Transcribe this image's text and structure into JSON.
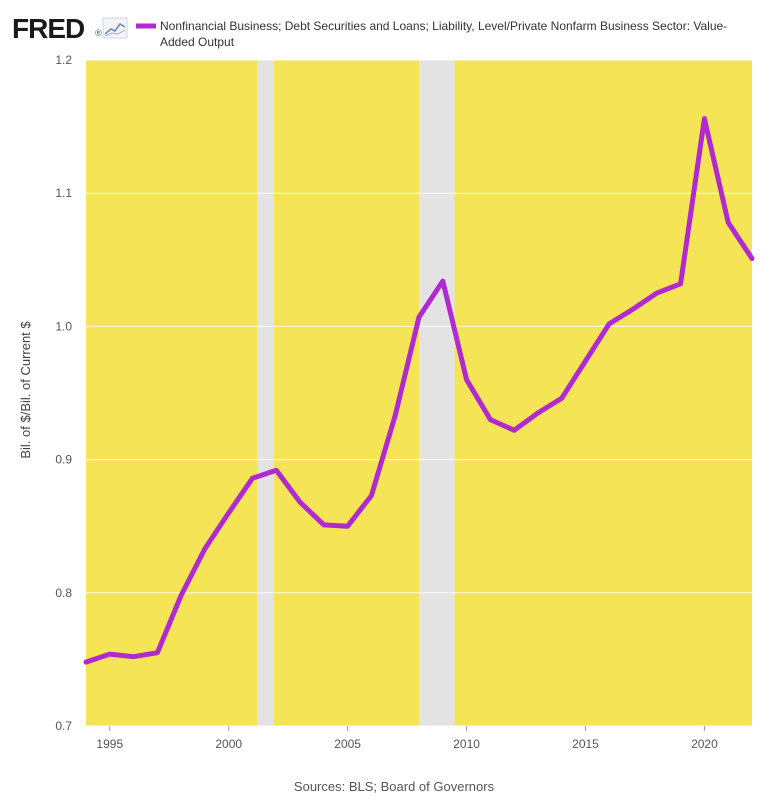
{
  "logo": {
    "text": "FRED",
    "mark": "®"
  },
  "legend": {
    "line1": "Nonfinancial Business; Debt Securities and Loans; Liability, Level/Private Nonfarm Business Sector: Value-",
    "line2": "Added Output"
  },
  "source": "Sources: BLS; Board of Governors",
  "colors": {
    "plot_background": "#f5e456",
    "recession": "#e3e3e3",
    "series": "#b02ad0",
    "grid": "#ffffff"
  },
  "chart_data": {
    "type": "line",
    "title": "",
    "xlabel": "",
    "ylabel": "Bil. of $/Bil. of Current $",
    "xlim": [
      1994,
      2022
    ],
    "ylim": [
      0.7,
      1.2
    ],
    "x_ticks": [
      1995,
      2000,
      2005,
      2010,
      2015,
      2020
    ],
    "y_ticks": [
      0.7,
      0.8,
      0.9,
      1.0,
      1.1,
      1.2
    ],
    "y_tick_labels": [
      "0.7",
      "0.8",
      "0.9",
      "1.0",
      "1.1",
      "1.2"
    ],
    "grid": "horizontal",
    "legend_position": "top",
    "recessions": [
      [
        2001.2,
        2001.9
      ],
      [
        2008.0,
        2009.5
      ]
    ],
    "series": [
      {
        "name": "Nonfinancial Business; Debt Securities and Loans; Liability, Level/Private Nonfarm Business Sector: Value-Added Output",
        "x": [
          1994,
          1995,
          1996,
          1997,
          1998,
          1999,
          2000,
          2001,
          2002,
          2003,
          2004,
          2005,
          2006,
          2007,
          2008,
          2009,
          2010,
          2011,
          2012,
          2013,
          2014,
          2015,
          2016,
          2017,
          2018,
          2019,
          2020,
          2021,
          2022
        ],
        "y": [
          0.748,
          0.754,
          0.752,
          0.755,
          0.798,
          0.833,
          0.86,
          0.886,
          0.892,
          0.868,
          0.851,
          0.85,
          0.873,
          0.933,
          1.007,
          1.034,
          0.96,
          0.93,
          0.922,
          0.935,
          0.946,
          0.974,
          1.002,
          1.013,
          1.025,
          1.032,
          1.156,
          1.078,
          1.051
        ]
      }
    ]
  }
}
